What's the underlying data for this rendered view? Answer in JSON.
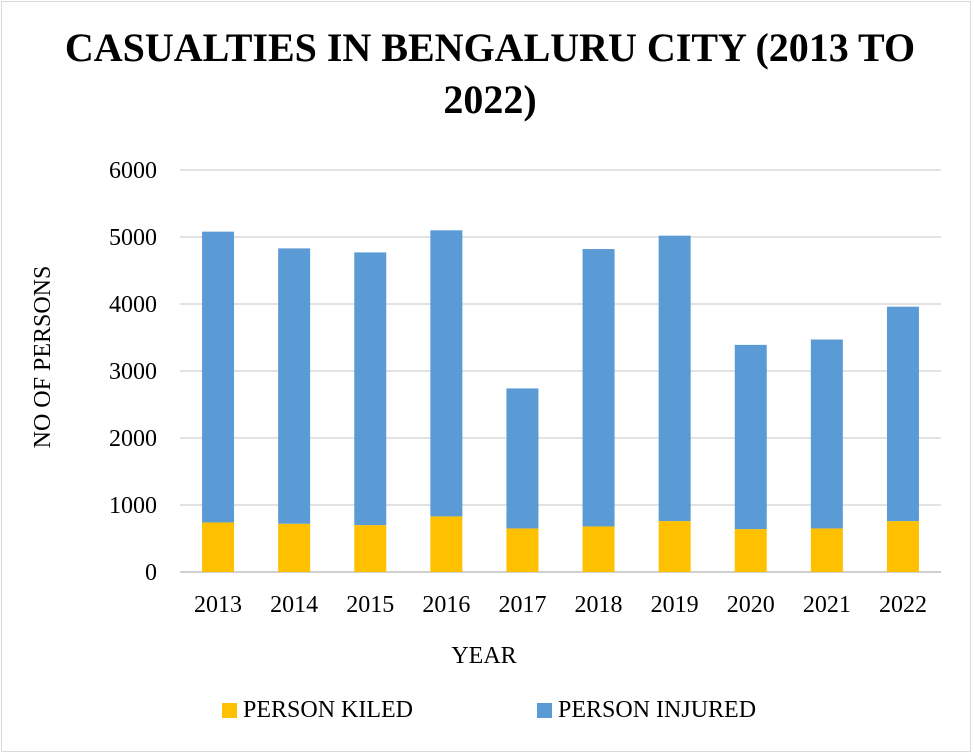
{
  "chart_data": {
    "type": "bar",
    "stacked": true,
    "title": "CASUALTIES IN BENGALURU CITY (2013 TO 2022)",
    "xlabel": "YEAR",
    "ylabel": "NO OF PERSONS",
    "ylim": [
      0,
      6000
    ],
    "yticks": [
      0,
      1000,
      2000,
      3000,
      4000,
      5000,
      6000
    ],
    "grid": true,
    "legend_position": "bottom",
    "categories": [
      "2013",
      "2014",
      "2015",
      "2016",
      "2017",
      "2018",
      "2019",
      "2020",
      "2021",
      "2022"
    ],
    "series": [
      {
        "name": "PERSON KILED",
        "color": "#ffc000",
        "values": [
          740,
          720,
          700,
          830,
          650,
          680,
          760,
          640,
          650,
          760
        ]
      },
      {
        "name": "PERSON INJURED",
        "color": "#5b9bd5",
        "values": [
          4340,
          4110,
          4070,
          4270,
          2090,
          4140,
          4260,
          2750,
          2820,
          3200
        ]
      }
    ]
  }
}
